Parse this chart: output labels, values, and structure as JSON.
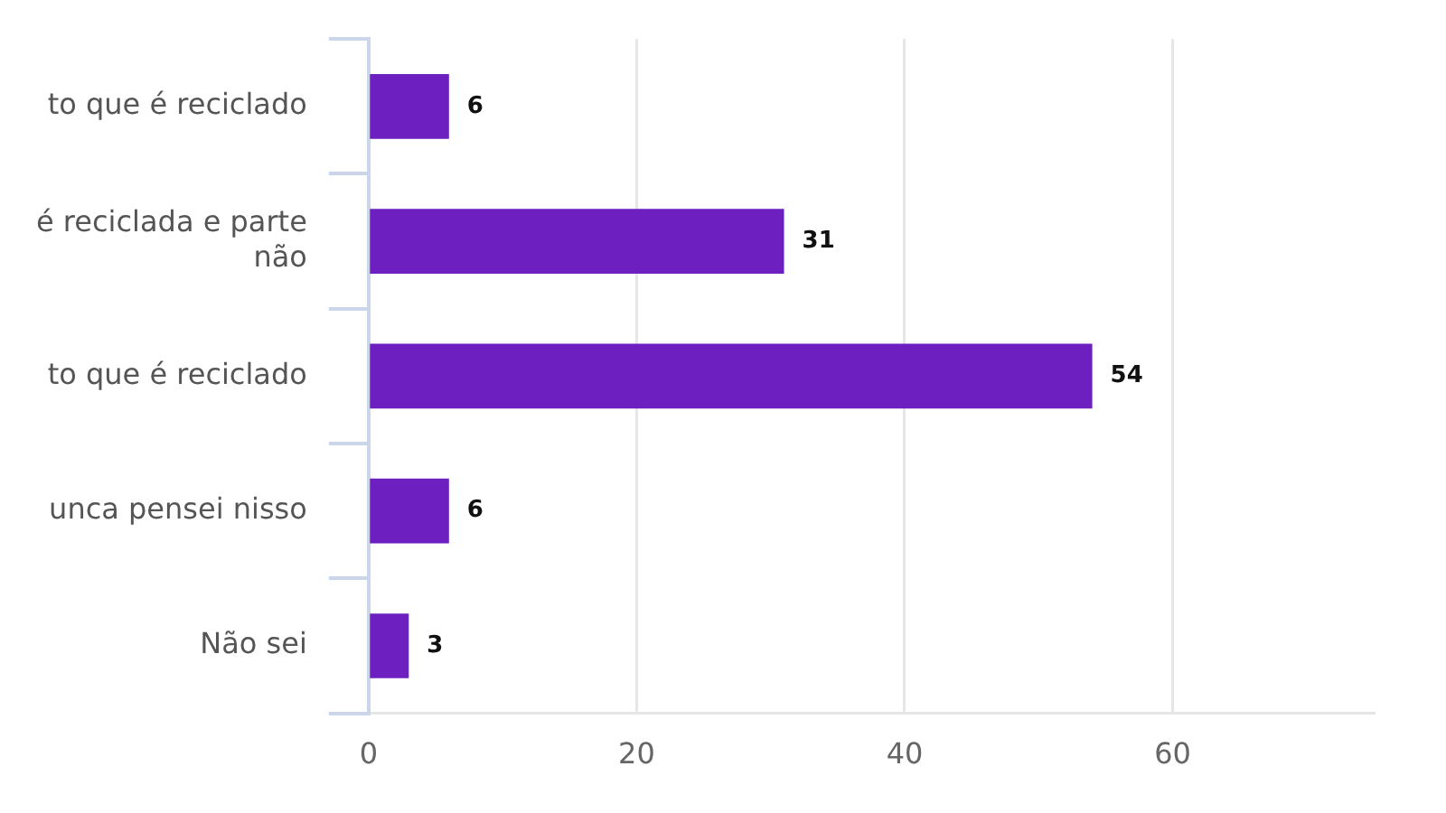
{
  "chart_data": {
    "type": "bar",
    "orientation": "horizontal",
    "categories": [
      "to que é reciclado",
      "é reciclada e parte não",
      "to que é reciclado",
      "unca pensei nisso",
      "Não sei"
    ],
    "values": [
      6,
      31,
      54,
      6,
      3
    ],
    "color": "#6e1fbf",
    "xlim": [
      0,
      75
    ],
    "xticks": [
      0,
      20,
      40,
      60
    ],
    "grid": "x",
    "data_labels": true,
    "legend": false
  }
}
